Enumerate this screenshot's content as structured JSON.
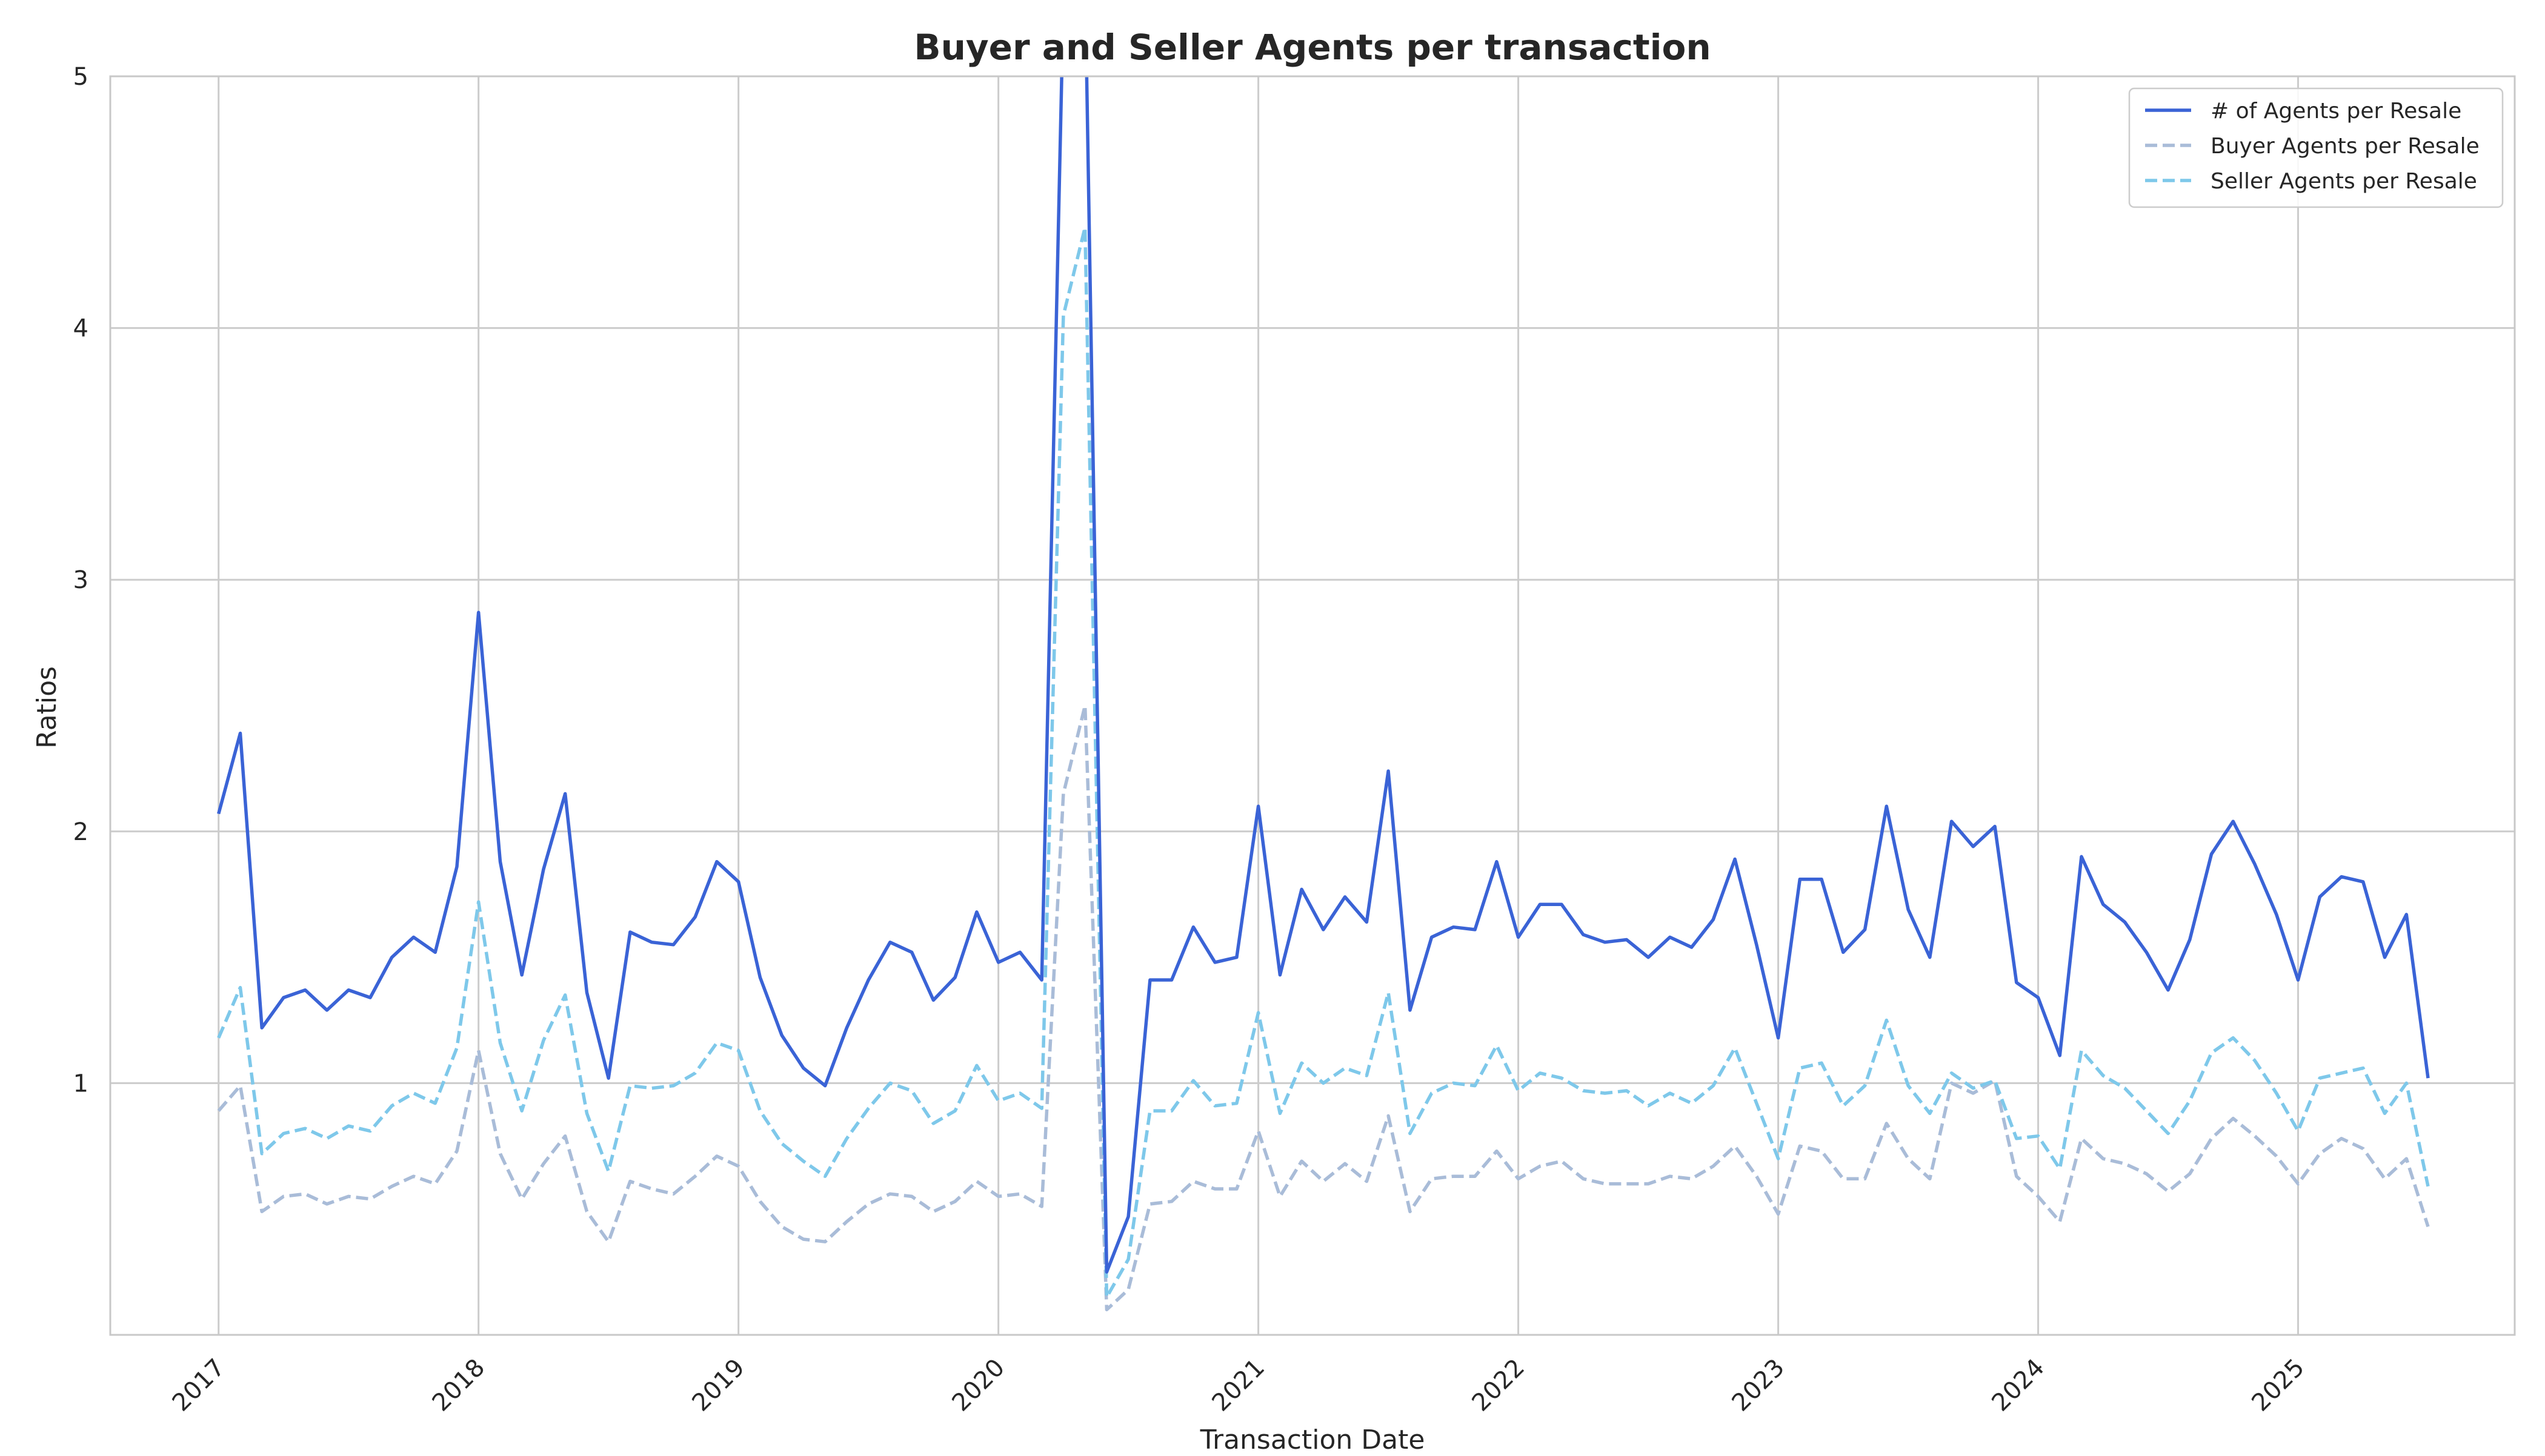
{
  "chart_data": {
    "type": "line",
    "title": "Buyer and Seller Agents per transaction",
    "xlabel": "Transaction Date",
    "ylabel": "Ratios",
    "x_start": "2017-01",
    "x_frequency": "monthly",
    "xticks": [
      "2017",
      "2018",
      "2019",
      "2020",
      "2021",
      "2022",
      "2023",
      "2024",
      "2025"
    ],
    "yticks": [
      "1",
      "2",
      "3",
      "4",
      "5"
    ],
    "xlim": [
      "2016-08",
      "2025-11"
    ],
    "ylim": [
      0.0,
      5.0
    ],
    "grid": true,
    "legend_position": "top-right",
    "series": [
      {
        "name": "# of Agents per Resale",
        "color": "#3a63d6",
        "style": "solid",
        "values": [
          2.07,
          2.39,
          1.22,
          1.34,
          1.37,
          1.29,
          1.37,
          1.34,
          1.5,
          1.58,
          1.52,
          1.86,
          2.87,
          1.88,
          1.43,
          1.85,
          2.15,
          1.36,
          1.02,
          1.6,
          1.56,
          1.55,
          1.66,
          1.88,
          1.8,
          1.42,
          1.19,
          1.06,
          0.99,
          1.22,
          1.41,
          1.56,
          1.52,
          1.33,
          1.42,
          1.68,
          1.48,
          1.52,
          1.41,
          5.3,
          5.4,
          0.25,
          0.47,
          1.41,
          1.41,
          1.62,
          1.48,
          1.5,
          2.1,
          1.43,
          1.77,
          1.61,
          1.74,
          1.64,
          2.24,
          1.29,
          1.58,
          1.62,
          1.61,
          1.88,
          1.58,
          1.71,
          1.71,
          1.59,
          1.56,
          1.57,
          1.5,
          1.58,
          1.54,
          1.65,
          1.89,
          1.55,
          1.18,
          1.81,
          1.81,
          1.52,
          1.61,
          2.1,
          1.69,
          1.5,
          2.04,
          1.94,
          2.02,
          1.4,
          1.34,
          1.11,
          1.9,
          1.71,
          1.64,
          1.52,
          1.37,
          1.57,
          1.91,
          2.04,
          1.87,
          1.67,
          1.41,
          1.74,
          1.82,
          1.8,
          1.5,
          1.67,
          1.02
        ]
      },
      {
        "name": "Buyer Agents per Resale",
        "color": "#a9bcd8",
        "style": "dashed",
        "values": [
          0.89,
          0.99,
          0.49,
          0.55,
          0.56,
          0.52,
          0.55,
          0.54,
          0.59,
          0.63,
          0.6,
          0.73,
          1.13,
          0.72,
          0.54,
          0.68,
          0.79,
          0.49,
          0.37,
          0.61,
          0.58,
          0.56,
          0.63,
          0.71,
          0.67,
          0.53,
          0.43,
          0.38,
          0.37,
          0.45,
          0.52,
          0.56,
          0.55,
          0.49,
          0.53,
          0.61,
          0.55,
          0.56,
          0.51,
          2.15,
          2.5,
          0.1,
          0.18,
          0.52,
          0.53,
          0.61,
          0.58,
          0.58,
          0.81,
          0.55,
          0.69,
          0.61,
          0.68,
          0.61,
          0.87,
          0.49,
          0.62,
          0.63,
          0.63,
          0.73,
          0.62,
          0.67,
          0.69,
          0.62,
          0.6,
          0.6,
          0.6,
          0.63,
          0.62,
          0.67,
          0.75,
          0.63,
          0.48,
          0.75,
          0.73,
          0.62,
          0.62,
          0.84,
          0.7,
          0.62,
          1.0,
          0.96,
          1.01,
          0.63,
          0.55,
          0.45,
          0.78,
          0.7,
          0.68,
          0.64,
          0.57,
          0.64,
          0.78,
          0.86,
          0.79,
          0.71,
          0.6,
          0.72,
          0.78,
          0.74,
          0.62,
          0.7,
          0.43
        ]
      },
      {
        "name": "Seller Agents per Resale",
        "color": "#7ec8ea",
        "style": "dashed",
        "values": [
          1.18,
          1.38,
          0.72,
          0.8,
          0.82,
          0.78,
          0.83,
          0.81,
          0.91,
          0.96,
          0.92,
          1.14,
          1.72,
          1.16,
          0.89,
          1.17,
          1.35,
          0.88,
          0.65,
          0.99,
          0.98,
          0.99,
          1.04,
          1.16,
          1.13,
          0.89,
          0.76,
          0.69,
          0.63,
          0.78,
          0.9,
          1.0,
          0.97,
          0.84,
          0.89,
          1.07,
          0.93,
          0.96,
          0.9,
          4.05,
          4.4,
          0.15,
          0.3,
          0.89,
          0.89,
          1.01,
          0.91,
          0.92,
          1.28,
          0.88,
          1.08,
          1.0,
          1.06,
          1.03,
          1.36,
          0.8,
          0.96,
          1.0,
          0.99,
          1.15,
          0.97,
          1.04,
          1.02,
          0.97,
          0.96,
          0.97,
          0.91,
          0.96,
          0.92,
          0.99,
          1.14,
          0.92,
          0.7,
          1.06,
          1.08,
          0.91,
          0.99,
          1.25,
          0.99,
          0.88,
          1.04,
          0.98,
          1.01,
          0.78,
          0.79,
          0.66,
          1.13,
          1.03,
          0.98,
          0.89,
          0.8,
          0.93,
          1.12,
          1.18,
          1.09,
          0.96,
          0.81,
          1.02,
          1.04,
          1.06,
          0.88,
          1.0,
          0.59
        ]
      }
    ]
  }
}
